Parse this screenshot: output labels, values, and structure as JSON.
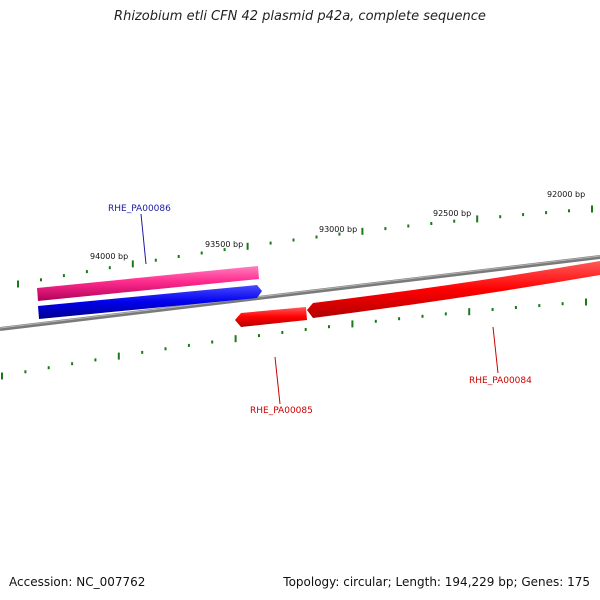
{
  "title": "Rhizobium etli CFN 42 plasmid p42a, complete sequence",
  "footer": {
    "accession": "Accession: NC_007762",
    "topology": "Topology: circular; Length: 194,229 bp; Genes: 175"
  },
  "ruler": {
    "labels": [
      {
        "text": "94000 bp",
        "bp": 94000
      },
      {
        "text": "93500 bp",
        "bp": 93500
      },
      {
        "text": "93000 bp",
        "bp": 93000
      },
      {
        "text": "92500 bp",
        "bp": 92500
      },
      {
        "text": "92000 bp",
        "bp": 92000
      }
    ]
  },
  "genes": [
    {
      "id": "RHE_PA00086",
      "strand": "reverse",
      "color": "#1a1aa0"
    },
    {
      "id": "RHE_PA00085",
      "strand": "forward",
      "color": "#cc0000"
    },
    {
      "id": "RHE_PA00084",
      "strand": "forward",
      "color": "#cc0000"
    }
  ],
  "colors": {
    "backbone": "#808080",
    "tick": "#1a7a1a",
    "pink_feature": "#ff2a8c",
    "blue_feature": "#0000ee",
    "red_feature": "#ff0000"
  }
}
